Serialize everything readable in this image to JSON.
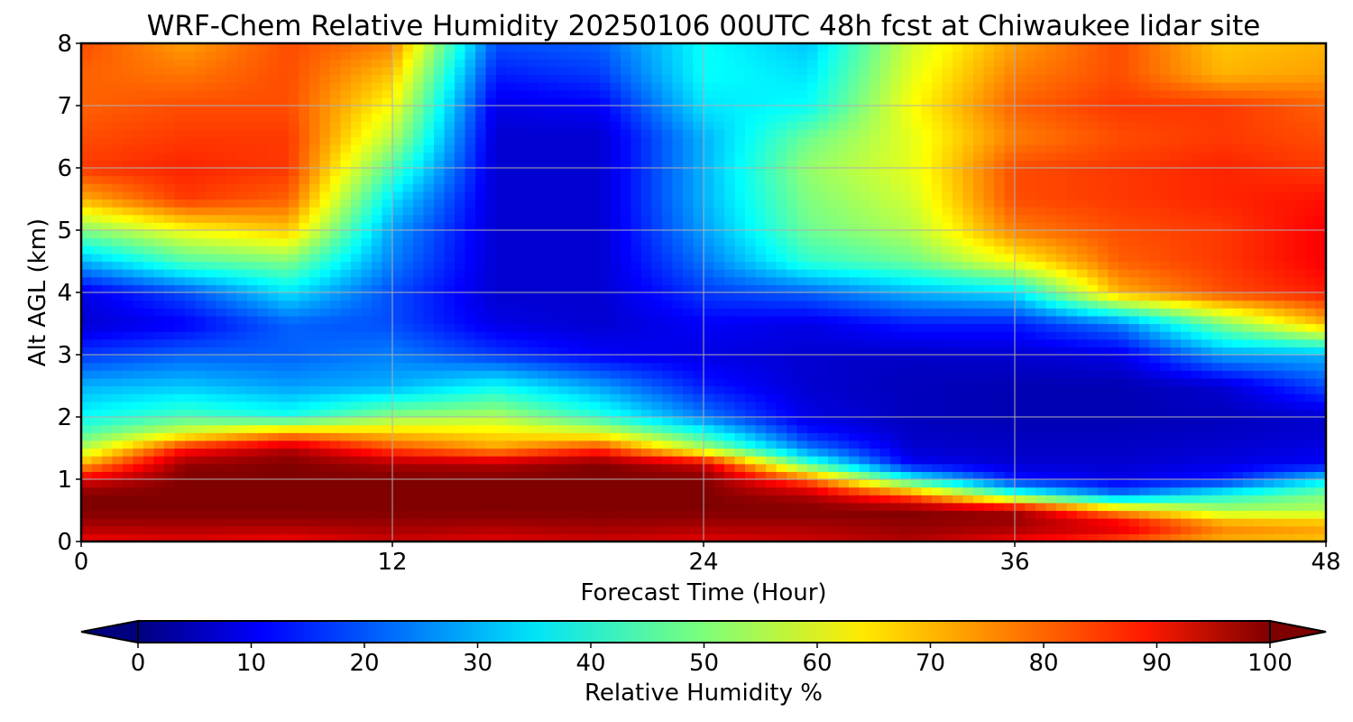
{
  "chart_data": {
    "type": "heatmap",
    "title": "WRF-Chem Relative Humidity 20250106 00UTC 48h fcst at Chiwaukee lidar site",
    "xlabel": "Forecast Time (Hour)",
    "ylabel": "Alt AGL (km)",
    "xlim": [
      0,
      48
    ],
    "ylim": [
      0,
      8
    ],
    "xticks": [
      0,
      12,
      24,
      36,
      48
    ],
    "yticks": [
      0,
      1,
      2,
      3,
      4,
      5,
      6,
      7,
      8
    ],
    "grid": true,
    "colormap": "jet",
    "colorbar": {
      "label": "Relative Humidity %",
      "ticks": [
        0,
        10,
        20,
        30,
        40,
        50,
        60,
        70,
        80,
        90,
        100
      ],
      "range": [
        0,
        100
      ],
      "extend": "both",
      "orientation": "horizontal"
    },
    "x": [
      0,
      4,
      8,
      12,
      16,
      20,
      24,
      28,
      32,
      36,
      40,
      44,
      48
    ],
    "y": [
      0,
      0.25,
      0.5,
      0.75,
      1,
      1.25,
      1.5,
      1.75,
      2,
      2.5,
      3,
      3.5,
      4,
      4.5,
      5,
      5.5,
      6,
      6.5,
      7,
      7.5,
      8
    ],
    "z": [
      [
        88,
        90,
        88,
        92,
        90,
        92,
        90,
        92,
        95,
        88,
        80,
        70,
        68
      ],
      [
        96,
        96,
        96,
        97,
        96,
        97,
        96,
        96,
        98,
        97,
        92,
        75,
        72
      ],
      [
        100,
        100,
        100,
        100,
        100,
        100,
        100,
        100,
        100,
        97,
        72,
        55,
        55
      ],
      [
        100,
        100,
        100,
        100,
        100,
        100,
        100,
        95,
        78,
        45,
        25,
        40,
        50
      ],
      [
        90,
        100,
        100,
        100,
        100,
        100,
        100,
        78,
        40,
        15,
        10,
        15,
        35
      ],
      [
        70,
        98,
        100,
        96,
        95,
        100,
        92,
        45,
        12,
        8,
        8,
        10,
        12
      ],
      [
        55,
        85,
        95,
        80,
        72,
        82,
        55,
        25,
        8,
        7,
        7,
        8,
        10
      ],
      [
        45,
        60,
        72,
        68,
        65,
        60,
        40,
        15,
        7,
        6,
        6,
        7,
        8
      ],
      [
        38,
        45,
        40,
        52,
        55,
        42,
        25,
        10,
        6,
        5,
        5,
        6,
        8
      ],
      [
        30,
        32,
        28,
        30,
        38,
        28,
        15,
        8,
        6,
        5,
        5,
        8,
        20
      ],
      [
        18,
        22,
        22,
        25,
        18,
        12,
        10,
        8,
        7,
        8,
        10,
        28,
        30
      ],
      [
        8,
        12,
        22,
        20,
        10,
        8,
        12,
        10,
        15,
        15,
        25,
        50,
        70
      ],
      [
        10,
        20,
        35,
        20,
        8,
        8,
        18,
        22,
        30,
        35,
        70,
        80,
        85
      ],
      [
        30,
        45,
        50,
        25,
        8,
        8,
        24,
        42,
        48,
        62,
        78,
        82,
        88
      ],
      [
        50,
        62,
        68,
        28,
        8,
        8,
        28,
        48,
        55,
        75,
        80,
        82,
        88
      ],
      [
        70,
        82,
        78,
        35,
        8,
        8,
        30,
        50,
        58,
        80,
        82,
        84,
        86
      ],
      [
        82,
        84,
        82,
        45,
        8,
        8,
        30,
        52,
        60,
        80,
        82,
        84,
        82
      ],
      [
        80,
        82,
        82,
        55,
        8,
        8,
        30,
        48,
        60,
        75,
        80,
        82,
        80
      ],
      [
        78,
        80,
        80,
        62,
        10,
        12,
        35,
        38,
        62,
        78,
        82,
        82,
        78
      ],
      [
        78,
        76,
        80,
        68,
        15,
        18,
        38,
        35,
        60,
        75,
        80,
        70,
        72
      ],
      [
        80,
        72,
        80,
        75,
        20,
        22,
        38,
        32,
        58,
        72,
        80,
        68,
        70
      ]
    ]
  }
}
